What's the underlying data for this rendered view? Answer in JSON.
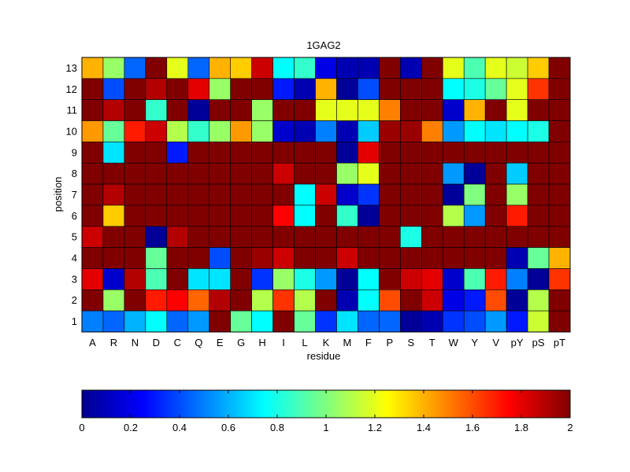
{
  "chart_data": {
    "type": "heatmap",
    "title": "1GAG2",
    "xlabel": "residue",
    "ylabel": "position",
    "x_categories": [
      "A",
      "R",
      "N",
      "D",
      "C",
      "Q",
      "E",
      "G",
      "H",
      "I",
      "L",
      "K",
      "M",
      "F",
      "P",
      "S",
      "T",
      "W",
      "Y",
      "V",
      "pY",
      "pS",
      "pT"
    ],
    "y_categories": [
      "1",
      "2",
      "3",
      "4",
      "5",
      "6",
      "7",
      "8",
      "9",
      "10",
      "11",
      "12",
      "13"
    ],
    "colormap": "jet",
    "clim": [
      0,
      2
    ],
    "colorbar_ticks": [
      "0",
      "0.2",
      "0.4",
      "0.6",
      "0.8",
      "1",
      "1.2",
      "1.4",
      "1.6",
      "1.8",
      "2"
    ],
    "colorbar_position": "bottom",
    "grid": true,
    "rows_top_to_bottom_positions": [
      "13",
      "12",
      "11",
      "10",
      "9",
      "8",
      "7",
      "6",
      "5",
      "4",
      "3",
      "2",
      "1"
    ],
    "values": [
      [
        1.4,
        1.05,
        0.45,
        2.0,
        1.2,
        0.45,
        1.4,
        1.35,
        1.85,
        0.75,
        0.85,
        0.2,
        0.1,
        0.1,
        2.0,
        0.1,
        2.0,
        1.2,
        0.9,
        1.2,
        1.15,
        1.35,
        2.0
      ],
      [
        2.0,
        0.4,
        2.0,
        1.9,
        2.0,
        1.8,
        1.05,
        2.0,
        2.0,
        0.3,
        0.1,
        1.4,
        0.05,
        0.4,
        2.0,
        2.0,
        2.0,
        0.75,
        0.8,
        0.95,
        1.2,
        1.65,
        2.0
      ],
      [
        2.0,
        1.9,
        2.0,
        0.85,
        2.0,
        0.05,
        2.0,
        2.0,
        1.05,
        2.0,
        2.0,
        1.2,
        1.2,
        1.2,
        1.5,
        2.0,
        2.0,
        0.15,
        1.4,
        2.0,
        1.2,
        2.0,
        2.0
      ],
      [
        1.45,
        0.95,
        1.7,
        1.85,
        1.1,
        0.85,
        1.05,
        1.45,
        1.05,
        0.15,
        0.1,
        0.5,
        0.1,
        0.65,
        1.95,
        1.95,
        1.5,
        0.55,
        0.75,
        0.7,
        0.75,
        0.8,
        2.0
      ],
      [
        2.0,
        0.7,
        2.0,
        2.0,
        0.3,
        2.0,
        2.0,
        2.0,
        2.0,
        2.0,
        2.0,
        2.0,
        0.05,
        1.8,
        2.0,
        2.0,
        2.0,
        2.0,
        2.0,
        2.0,
        2.0,
        2.0,
        2.0
      ],
      [
        2.0,
        2.0,
        2.0,
        2.0,
        2.0,
        2.0,
        2.0,
        2.0,
        2.0,
        1.85,
        2.0,
        2.0,
        1.05,
        1.2,
        2.0,
        2.0,
        2.0,
        0.55,
        0.05,
        2.0,
        0.65,
        2.0,
        2.0
      ],
      [
        2.0,
        1.9,
        2.0,
        2.0,
        2.0,
        2.0,
        2.0,
        2.0,
        2.0,
        2.0,
        0.75,
        1.85,
        0.15,
        0.35,
        2.0,
        2.0,
        2.0,
        0.05,
        1.0,
        2.0,
        1.05,
        2.0,
        2.0
      ],
      [
        2.0,
        1.35,
        2.0,
        2.0,
        2.0,
        2.0,
        2.0,
        2.0,
        2.0,
        1.75,
        0.75,
        2.0,
        0.85,
        0.05,
        2.0,
        2.0,
        2.0,
        1.1,
        0.55,
        2.0,
        1.7,
        2.0,
        2.0
      ],
      [
        1.85,
        2.0,
        2.0,
        0.05,
        1.9,
        2.0,
        2.0,
        2.0,
        2.0,
        2.0,
        2.0,
        2.0,
        2.0,
        2.0,
        2.0,
        0.8,
        2.0,
        2.0,
        2.0,
        2.0,
        2.0,
        2.0,
        2.0
      ],
      [
        2.0,
        2.0,
        2.0,
        0.95,
        2.0,
        2.0,
        0.4,
        2.0,
        1.95,
        1.85,
        2.0,
        2.0,
        1.85,
        2.0,
        2.0,
        2.0,
        2.0,
        2.0,
        2.0,
        2.0,
        0.1,
        0.95,
        1.4
      ],
      [
        1.8,
        0.15,
        1.9,
        0.9,
        2.0,
        0.7,
        0.7,
        2.0,
        0.35,
        1.05,
        0.8,
        0.55,
        0.05,
        0.75,
        2.0,
        1.85,
        1.8,
        0.15,
        0.9,
        1.7,
        0.5,
        0.05,
        1.65
      ],
      [
        2.0,
        1.05,
        2.0,
        1.7,
        1.75,
        1.55,
        1.9,
        2.0,
        1.1,
        1.65,
        1.1,
        2.0,
        0.1,
        0.75,
        1.6,
        2.0,
        1.85,
        0.2,
        0.3,
        1.6,
        0.05,
        1.1,
        2.0
      ],
      [
        0.5,
        0.45,
        0.6,
        0.75,
        0.45,
        0.55,
        2.0,
        0.95,
        0.75,
        2.0,
        0.95,
        0.35,
        0.7,
        0.45,
        0.45,
        0.05,
        0.1,
        0.35,
        0.4,
        0.55,
        0.3,
        1.15,
        2.0
      ]
    ]
  }
}
